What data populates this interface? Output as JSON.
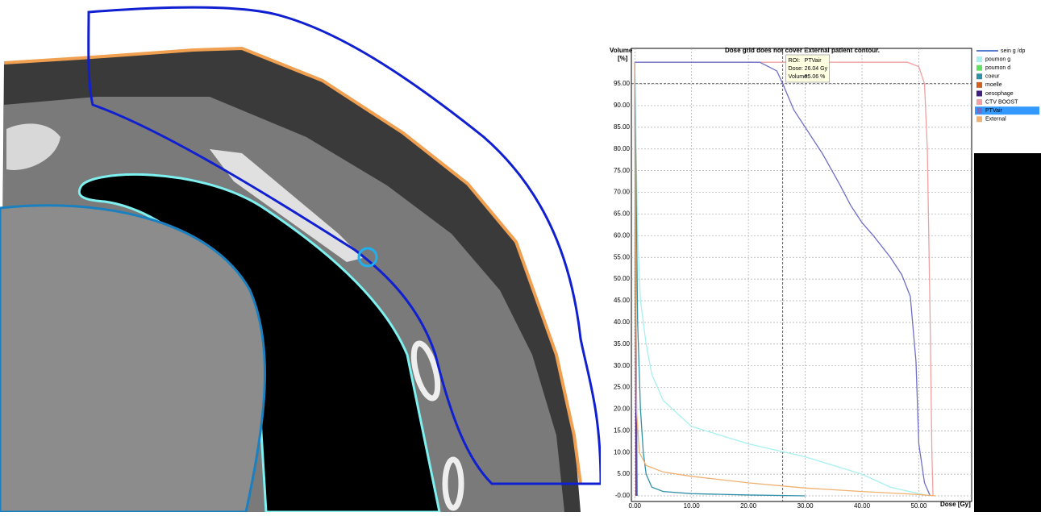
{
  "chart_data": {
    "type": "line",
    "title": "Dose grid does not cover External patient contour.",
    "y_label_line1": "Volume",
    "y_label_line2": "[%]",
    "x_label": "Dose [Gy]",
    "xlim": [
      -0.6,
      59.3
    ],
    "ylim": [
      -1.3,
      103.2
    ],
    "xticks": [
      {
        "value": 0,
        "label": "0.00"
      },
      {
        "value": 10,
        "label": "10.00"
      },
      {
        "value": 20,
        "label": "20.00"
      },
      {
        "value": 30,
        "label": "30.00"
      },
      {
        "value": 40,
        "label": "40.00"
      },
      {
        "value": 50,
        "label": "50.00"
      }
    ],
    "yticks": [
      {
        "value": 0,
        "label": "-0.00"
      },
      {
        "value": 5,
        "label": "5.00"
      },
      {
        "value": 10,
        "label": "10.00"
      },
      {
        "value": 15,
        "label": "15.00"
      },
      {
        "value": 20,
        "label": "20.00"
      },
      {
        "value": 25,
        "label": "25.00"
      },
      {
        "value": 30,
        "label": "30.00"
      },
      {
        "value": 35,
        "label": "35.00"
      },
      {
        "value": 40,
        "label": "40.00"
      },
      {
        "value": 45,
        "label": "45.00"
      },
      {
        "value": 50,
        "label": "50.00"
      },
      {
        "value": 55,
        "label": "55.00"
      },
      {
        "value": 60,
        "label": "60.00"
      },
      {
        "value": 65,
        "label": "65.00"
      },
      {
        "value": 70,
        "label": "70.00"
      },
      {
        "value": 75,
        "label": "75.00"
      },
      {
        "value": 80,
        "label": "80.00"
      },
      {
        "value": 85,
        "label": "85.00"
      },
      {
        "value": 90,
        "label": "90.00"
      },
      {
        "value": 95,
        "label": "95.00"
      }
    ],
    "grid": true,
    "series": [
      {
        "name": "sein g /dp",
        "color": "#2050c0",
        "x": [
          0,
          0.4
        ],
        "values": [
          100,
          0
        ]
      },
      {
        "name": "poumon g",
        "color": "#a8f0f0",
        "x": [
          0,
          0.5,
          1,
          2,
          3,
          5,
          10,
          20,
          30,
          40,
          45,
          50,
          52
        ],
        "values": [
          100,
          60,
          45,
          35,
          28,
          22,
          16,
          12,
          9,
          5,
          2,
          0.5,
          0
        ]
      },
      {
        "name": "poumon d",
        "color": "#60e060",
        "x": [
          0,
          0.3
        ],
        "values": [
          100,
          0
        ]
      },
      {
        "name": "coeur",
        "color": "#3090a8",
        "x": [
          0,
          0.5,
          1,
          1.5,
          2,
          3,
          5,
          10,
          20,
          30
        ],
        "values": [
          100,
          40,
          20,
          10,
          5,
          2,
          1,
          0.5,
          0.2,
          0
        ]
      },
      {
        "name": "moelle",
        "color": "#d06020",
        "x": [
          0,
          0.2
        ],
        "values": [
          100,
          0
        ]
      },
      {
        "name": "oesophage",
        "color": "#402080",
        "x": [
          0,
          0.25
        ],
        "values": [
          100,
          0
        ]
      },
      {
        "name": "CTV BOOST",
        "color": "#f0a0a0",
        "x": [
          0,
          48,
          50,
          51,
          51.5,
          52,
          52.3,
          52.5
        ],
        "values": [
          100,
          100,
          99,
          95,
          80,
          40,
          10,
          0
        ]
      },
      {
        "name": "PTVair",
        "color": "#6f6fc8",
        "x": [
          0,
          22,
          25,
          26.04,
          28,
          30,
          33,
          36,
          38,
          40,
          42,
          45,
          47,
          48.5,
          49.5,
          50,
          51,
          52
        ],
        "values": [
          100,
          100,
          98,
          95.06,
          89,
          85,
          79,
          72,
          67,
          63,
          60,
          55,
          51,
          46,
          31,
          12,
          3,
          0
        ]
      },
      {
        "name": "External",
        "color": "#f0b070",
        "x": [
          0,
          0.3,
          0.8,
          2,
          5,
          10,
          20,
          30,
          40,
          50,
          53
        ],
        "values": [
          100,
          20,
          10,
          7,
          5.5,
          4.5,
          3,
          1.8,
          1,
          0.3,
          0
        ]
      }
    ],
    "selected_series": 7,
    "cursor": {
      "dose": 26.04,
      "volume": 95.06
    },
    "tooltip": {
      "roi_label": "ROI:",
      "roi": "PTVair",
      "dose_label": "Dose:",
      "dose": "26.04 Gy",
      "volume_label": "Volume:",
      "volume": "95.06 %"
    }
  }
}
